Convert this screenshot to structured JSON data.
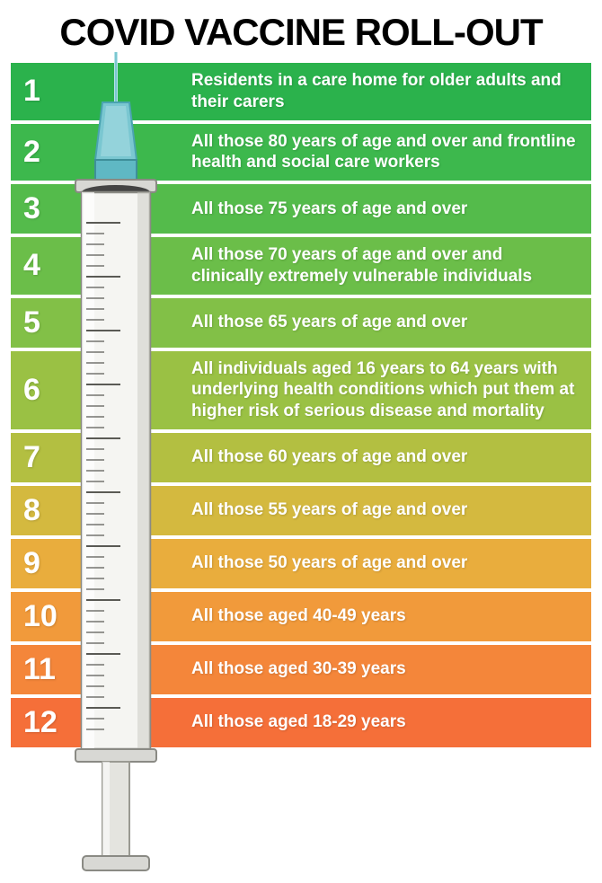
{
  "type": "infographic",
  "title": "COVID VACCINE ROLL-OUT",
  "title_fontsize": 42,
  "title_color": "#000000",
  "background_color": "#ffffff",
  "text_color": "#ffffff",
  "number_fontsize": 34,
  "desc_fontsize": 19,
  "row_gap": 4,
  "syringe": {
    "needle_color": "#7ac7d1",
    "hub_color": "#5fb8c4",
    "plunger_end_color": "#2b2b2b",
    "barrel_fill": "#f0f0ee",
    "barrel_stroke": "#8a8a84",
    "plunger_rod_color": "#d8d8d4",
    "tick_color": "#5a5a55"
  },
  "rows": [
    {
      "n": "1",
      "text": "Residents in a care home for older adults and their carers",
      "color": "#2bb24c"
    },
    {
      "n": "2",
      "text": "All those 80 years of age and over and frontline health and social care workers",
      "color": "#3db84d"
    },
    {
      "n": "3",
      "text": "All those 75 years of age and over",
      "color": "#54bb4b"
    },
    {
      "n": "4",
      "text": "All those 70 years of age and over and clinically extremely vulnerable individuals",
      "color": "#6bbe49"
    },
    {
      "n": "5",
      "text": "All those 65 years of age and over",
      "color": "#82c047"
    },
    {
      "n": "6",
      "text": "All individuals aged 16 years to 64 years with underlying health conditions which put them at higher risk of serious disease and mortality",
      "color": "#9ac144"
    },
    {
      "n": "7",
      "text": "All those 60 years of age and over",
      "color": "#b3bf41"
    },
    {
      "n": "8",
      "text": "All those 55 years of age and over",
      "color": "#d4b93f"
    },
    {
      "n": "9",
      "text": "All those 50 years of age and over",
      "color": "#e9ad3d"
    },
    {
      "n": "10",
      "text": "All those aged 40-49 years",
      "color": "#f19a3b"
    },
    {
      "n": "11",
      "text": "All those aged 30-39 years",
      "color": "#f4863a"
    },
    {
      "n": "12",
      "text": "All those aged 18-29 years",
      "color": "#f56f39"
    }
  ]
}
